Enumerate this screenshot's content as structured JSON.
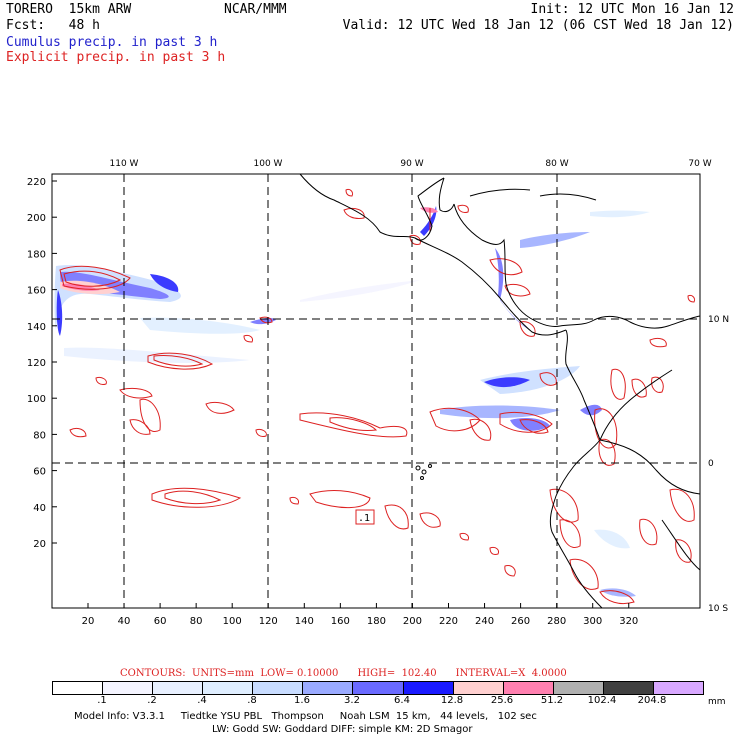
{
  "header": {
    "model": "TORERO  15km ARW",
    "forecast": "Fcst:   48 h",
    "center": "NCAR/MMM",
    "init": "Init: 12 UTC Mon 16 Jan 12",
    "valid": "Valid: 12 UTC Wed 18 Jan 12 (06 CST Wed 18 Jan 12)"
  },
  "legend": {
    "cumulus": "Cumulus precip. in past 3 h",
    "explicit": "Explicit precip. in past 3 h",
    "cumulus_color": "#2222cc",
    "explicit_color": "#dd2222"
  },
  "map": {
    "top_lon_labels": [
      "110 W",
      "100 W",
      "90 W",
      "80 W",
      "70 W"
    ],
    "right_lat_labels": [
      "10 N",
      "0",
      "10 S"
    ],
    "y_ticks": [
      "220",
      "200",
      "180",
      "160",
      "140",
      "120",
      "100",
      "80",
      "60",
      "40",
      "20"
    ],
    "x_ticks": [
      "20",
      "40",
      "60",
      "80",
      "100",
      "120",
      "140",
      "160",
      "180",
      "200",
      "220",
      "240",
      "260",
      "280",
      "300",
      "320"
    ],
    "box_label": ".1"
  },
  "footer": {
    "contours": "CONTOURS:  UNITS=mm  LOW= 0.10000      HIGH=  102.40      INTERVAL=X  4.0000",
    "colorbar_values": [
      ".1",
      ".2",
      ".4",
      ".8",
      "1.6",
      "3.2",
      "6.4",
      "12.8",
      "25.6",
      "51.2",
      "102.4",
      "204.8"
    ],
    "colorbar_colors": [
      "#ffffff",
      "#f4f4ff",
      "#e8f0ff",
      "#dfeeff",
      "#c8dcff",
      "#9aaaff",
      "#6a6aff",
      "#1a1aff",
      "#ffd0d0",
      "#ff80b0",
      "#b0b0b0",
      "#404040",
      "#d8a8ff"
    ],
    "units": "mm",
    "model_info": "Model Info: V3.3.1     Tiedtke YSU PBL   Thompson     Noah LSM  15 km,   44 levels,   102 sec",
    "model_info2": "LW: Godd SW: Goddard DIFF: simple KM: 2D Smagor"
  }
}
